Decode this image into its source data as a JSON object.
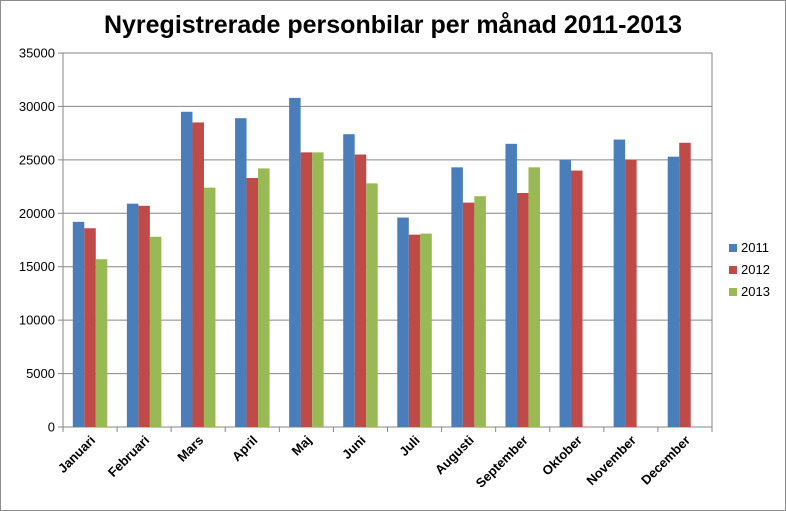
{
  "chart_data": {
    "type": "bar",
    "title": "Nyregistrerade personbilar per månad 2011-2013",
    "xlabel": "",
    "ylabel": "",
    "ylim": [
      0,
      35000
    ],
    "yticks": [
      0,
      5000,
      10000,
      15000,
      20000,
      25000,
      30000,
      35000
    ],
    "grid": true,
    "legend_position": "right",
    "categories": [
      "Januari",
      "Februari",
      "Mars",
      "April",
      "Maj",
      "Juni",
      "Juli",
      "Augusti",
      "September",
      "Oktober",
      "November",
      "December"
    ],
    "series": [
      {
        "name": "2011",
        "color": "#4a7ebb",
        "values": [
          19200,
          20900,
          29500,
          28900,
          30800,
          27400,
          19600,
          24300,
          26500,
          25000,
          26900,
          25300
        ]
      },
      {
        "name": "2012",
        "color": "#be4b48",
        "values": [
          18600,
          20700,
          28500,
          23300,
          25700,
          25500,
          18000,
          21000,
          21900,
          24000,
          25000,
          26600
        ]
      },
      {
        "name": "2013",
        "color": "#98b954",
        "values": [
          15700,
          17800,
          22400,
          24200,
          25700,
          22800,
          18100,
          21600,
          24300,
          null,
          null,
          null
        ]
      }
    ]
  }
}
